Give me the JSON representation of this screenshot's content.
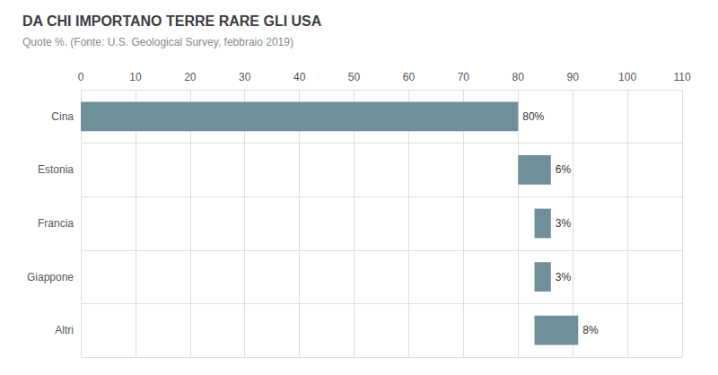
{
  "chart_data": {
    "type": "bar",
    "orientation": "horizontal",
    "title": "DA CHI IMPORTANO TERRE RARE GLI USA",
    "subtitle": "Quote %. (Fonte: U.S. Geological Survey, febbraio 2019)",
    "categories": [
      "Cina",
      "Estonia",
      "Francia",
      "Giappone",
      "Altri"
    ],
    "values": [
      80,
      6,
      3,
      3,
      8
    ],
    "starts": [
      0,
      80,
      83,
      83,
      83
    ],
    "value_labels": [
      "80%",
      "6%",
      "3%",
      "3%",
      "8%"
    ],
    "data_labels": true,
    "color": "#6f8f99",
    "xlim": [
      0,
      110
    ],
    "xticks": [
      0,
      10,
      20,
      30,
      40,
      50,
      60,
      70,
      80,
      90,
      100,
      110
    ],
    "grid": true
  }
}
